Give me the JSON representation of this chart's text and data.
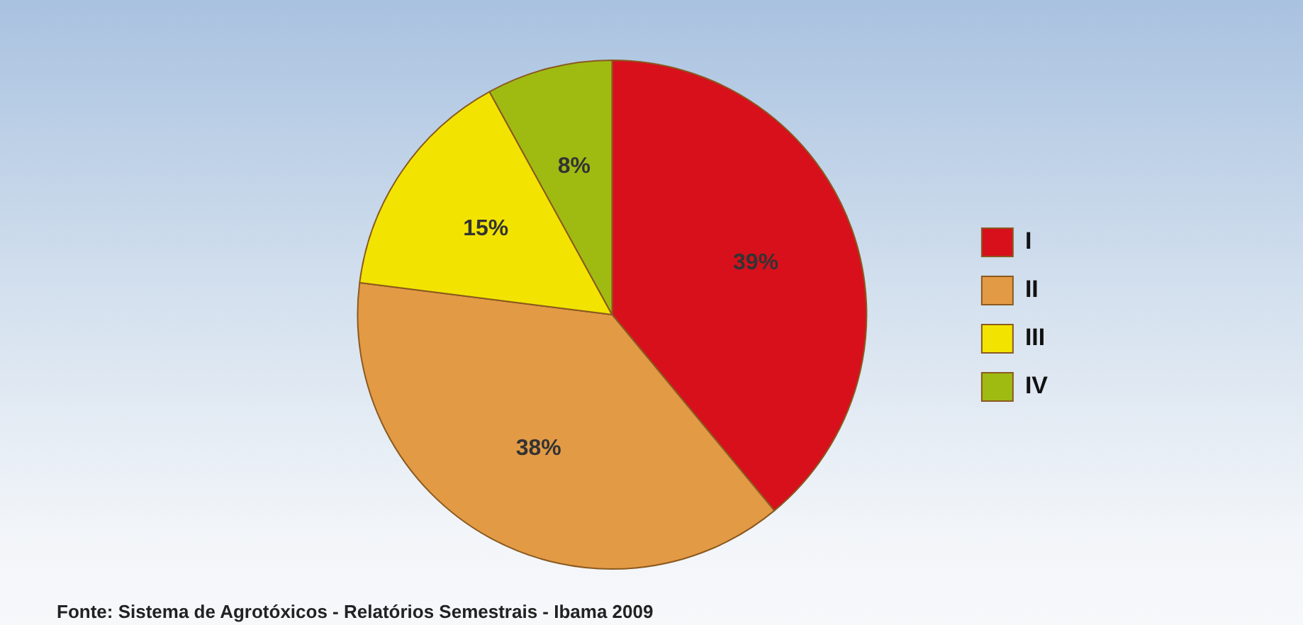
{
  "chart_data": {
    "type": "pie",
    "categories": [
      "I",
      "II",
      "III",
      "IV"
    ],
    "values": [
      39,
      38,
      15,
      8
    ],
    "value_labels": [
      "39%",
      "38%",
      "15%",
      "8%"
    ],
    "colors": [
      "#d7101c",
      "#e39a45",
      "#f2e400",
      "#9fbb12"
    ],
    "legend": "right",
    "annotations": [
      "Fonte: Sistema de Agrotóxicos - Relatórios Semestrais - Ibama 2009"
    ]
  }
}
